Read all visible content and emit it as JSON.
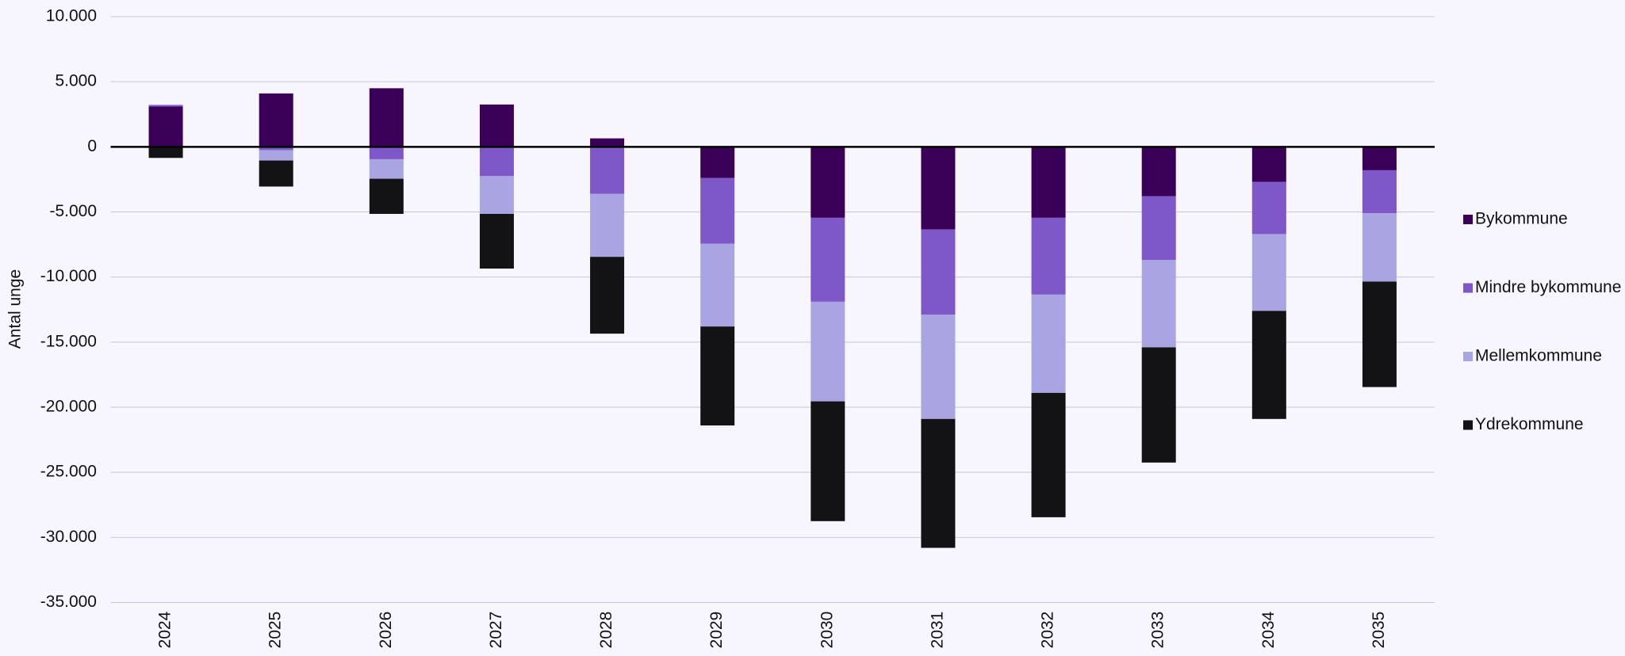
{
  "chart_data": {
    "type": "stacked_bar",
    "y_label": "Antal unge",
    "categories": [
      "2024",
      "2025",
      "2026",
      "2027",
      "2028",
      "2029",
      "2030",
      "2031",
      "2032",
      "2033",
      "2034",
      "2035"
    ],
    "series": [
      {
        "name": "Bykommune",
        "color": "#3a0058",
        "values": [
          3100,
          4100,
          4500,
          3250,
          650,
          -2400,
          -5450,
          -6350,
          -5450,
          -3800,
          -2700,
          -1800
        ]
      },
      {
        "name": "Mindre bykommune",
        "color": "#7e57c8",
        "values": [
          100,
          -250,
          -950,
          -2250,
          -3600,
          -5050,
          -6450,
          -6550,
          -5900,
          -4900,
          -4000,
          -3300
        ]
      },
      {
        "name": "Mellemkommune",
        "color": "#a9a5e2",
        "values": [
          50,
          -800,
          -1500,
          -2900,
          -4850,
          -6350,
          -7650,
          -8000,
          -7550,
          -6700,
          -5900,
          -5250
        ]
      },
      {
        "name": "Ydrekommune",
        "color": "#131316",
        "values": [
          -850,
          -2000,
          -2700,
          -4200,
          -5900,
          -7600,
          -9200,
          -9900,
          -9550,
          -8850,
          -8300,
          -8100
        ]
      }
    ],
    "ylim": [
      -35000,
      10000
    ],
    "yticks": [
      {
        "value": 10000,
        "label": "10.000"
      },
      {
        "value": 5000,
        "label": "5.000"
      },
      0,
      {
        "value": -5000,
        "label": "-5.000"
      },
      {
        "value": -10000,
        "label": "-10.000"
      },
      {
        "value": -15000,
        "label": "-15.000"
      },
      {
        "value": -20000,
        "label": "-20.000"
      },
      {
        "value": -25000,
        "label": "-25.000"
      },
      {
        "value": -30000,
        "label": "-30.000"
      },
      {
        "value": -35000,
        "label": "-35.000"
      }
    ],
    "grid": true
  }
}
